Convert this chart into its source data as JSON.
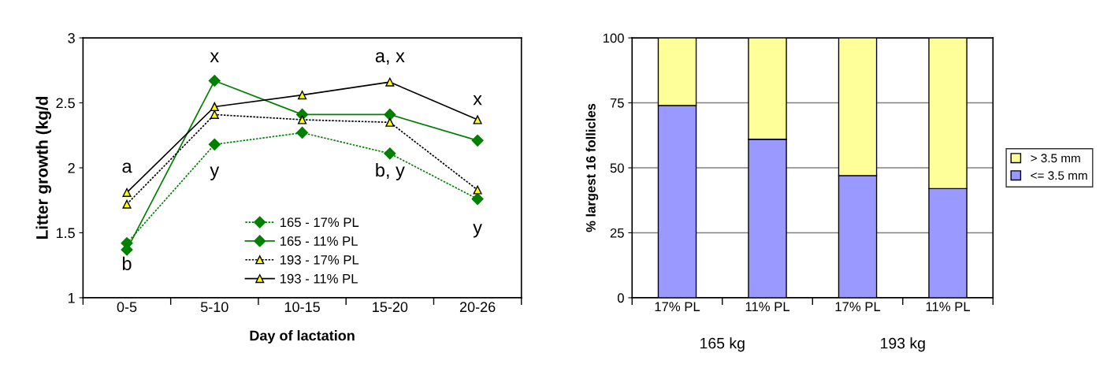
{
  "chart_data": [
    {
      "type": "line",
      "xlabel": "Day of lactation",
      "ylabel": "Litter growth (kg/d",
      "categories": [
        "0-5",
        "5-10",
        "10-15",
        "15-20",
        "20-26"
      ],
      "series": [
        {
          "name": "165 - 17% PL",
          "color": "#008000",
          "marker": "diamond",
          "line_style": "dotted",
          "values": [
            1.42,
            2.18,
            2.27,
            2.11,
            1.76
          ]
        },
        {
          "name": "165 - 11% PL",
          "color": "#008000",
          "marker": "diamond",
          "line_style": "solid",
          "values": [
            1.37,
            2.67,
            2.41,
            2.41,
            2.21
          ]
        },
        {
          "name": "193 - 17% PL",
          "color": "#000000",
          "marker": "triangle",
          "line_style": "dotted",
          "values": [
            1.72,
            2.41,
            2.37,
            2.35,
            1.83
          ]
        },
        {
          "name": "193 - 11% PL",
          "color": "#000000",
          "marker": "triangle",
          "line_style": "solid",
          "values": [
            1.81,
            2.47,
            2.56,
            2.66,
            2.37
          ]
        }
      ],
      "ylim": [
        1,
        3
      ],
      "yticks": [
        1,
        1.5,
        2,
        2.5,
        3
      ],
      "grid": false,
      "legend": "bottom",
      "annotations": [
        "a",
        "b",
        "x",
        "y",
        "a, x",
        "b, y",
        "x",
        "y"
      ]
    },
    {
      "type": "bar",
      "stacked": true,
      "ylabel": "% largest 16 follicles",
      "categories": [
        "17% PL",
        "11% PL",
        "17% PL",
        "11% PL"
      ],
      "series": [
        {
          "name": "<= 3.5 mm",
          "color": "#9999ff",
          "values": [
            74,
            61,
            47,
            42
          ]
        },
        {
          "name": "> 3.5 mm",
          "color": "#ffff99",
          "values": [
            26,
            39,
            53,
            58
          ]
        }
      ],
      "ylim": [
        0,
        100
      ],
      "yticks": [
        0,
        25,
        50,
        75,
        100
      ],
      "grid": "y",
      "legend": "right",
      "annotations": [
        "165 kg",
        "193 kg"
      ]
    }
  ]
}
